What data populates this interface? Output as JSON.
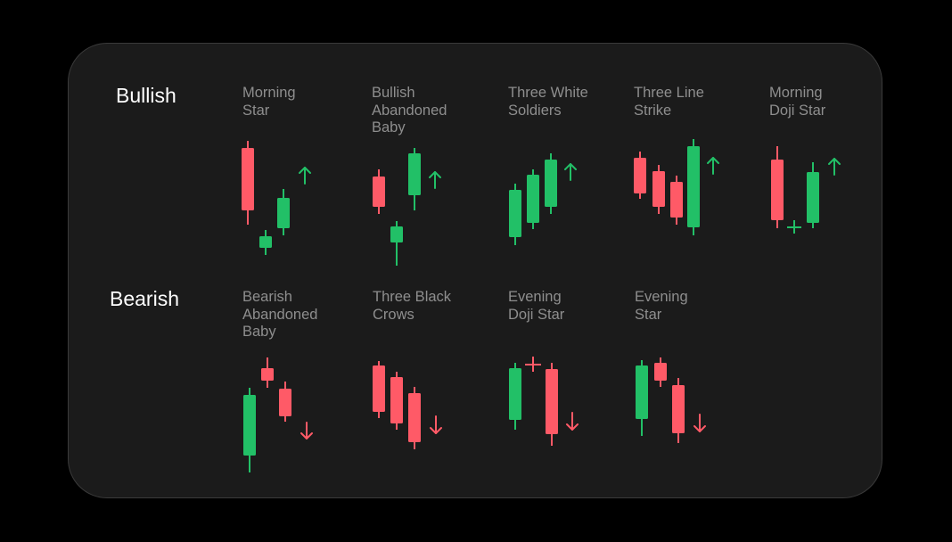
{
  "colors": {
    "bull": "#22c067",
    "bear": "#ff5a67",
    "label": "#8e8e8e",
    "title": "#ffffff",
    "card": "#1b1b1b"
  },
  "sections": [
    {
      "title": "Bullish",
      "patterns": [
        {
          "label": "Morning\nStar",
          "arrow": "up"
        },
        {
          "label": "Bullish\nAbandoned\nBaby",
          "arrow": "up"
        },
        {
          "label": "Three White\nSoldiers",
          "arrow": "up"
        },
        {
          "label": "Three Line\nStrike",
          "arrow": "up"
        },
        {
          "label": "Morning\nDoji Star",
          "arrow": "up"
        }
      ]
    },
    {
      "title": "Bearish",
      "patterns": [
        {
          "label": "Bearish\nAbandoned\nBaby",
          "arrow": "down"
        },
        {
          "label": "Three Black\nCrows",
          "arrow": "down"
        },
        {
          "label": "Evening\nDoji Star",
          "arrow": "down"
        },
        {
          "label": "Evening\nStar",
          "arrow": "down"
        }
      ]
    }
  ]
}
